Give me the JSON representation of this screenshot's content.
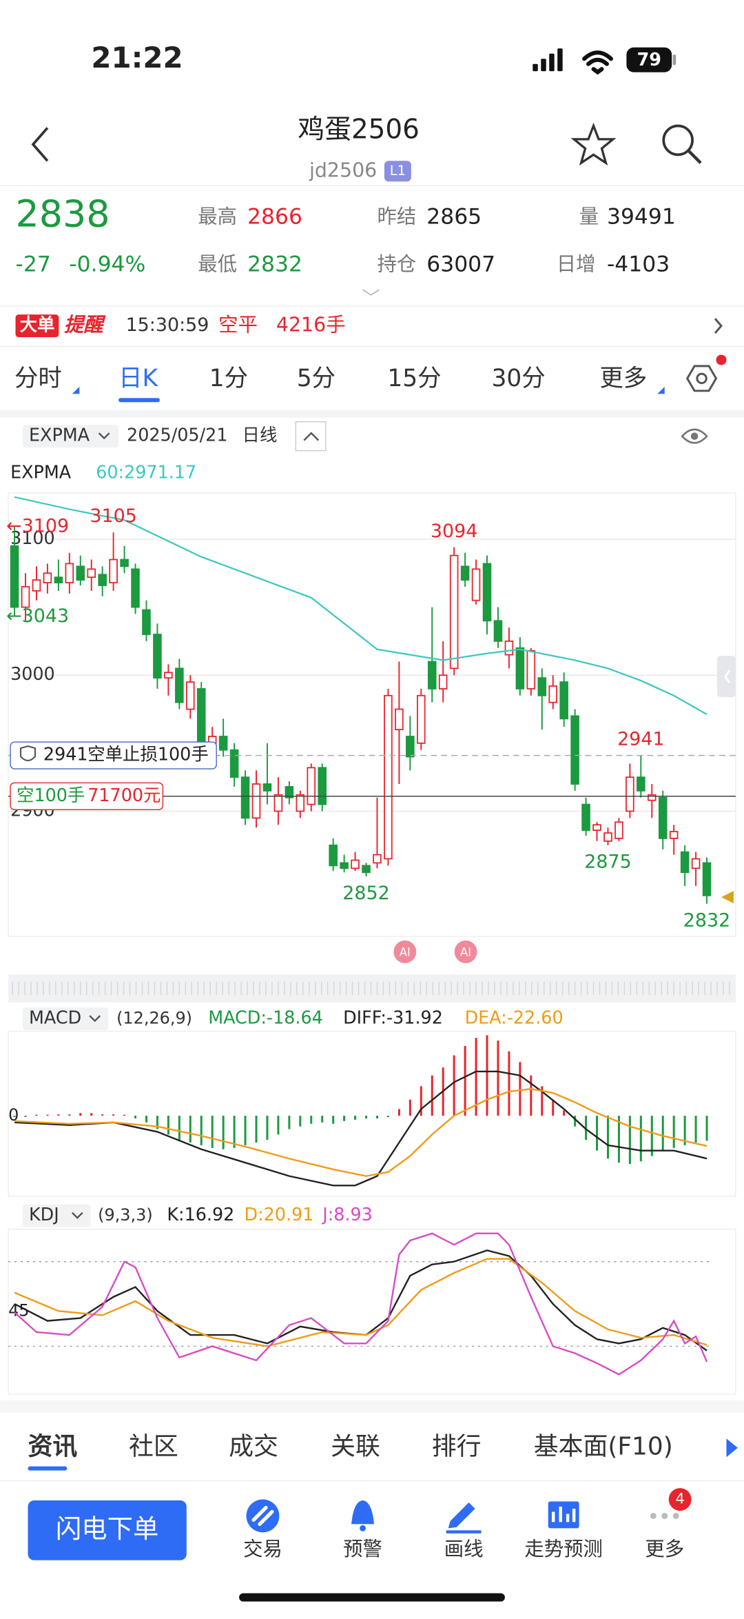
{
  "status_bar": {
    "time": "21:22",
    "battery": "79"
  },
  "header": {
    "title": "鸡蛋2506",
    "code": "jd2506",
    "badge": "L1"
  },
  "quote": {
    "price": "2838",
    "change": "-27",
    "change_pct": "-0.94%",
    "fields": [
      {
        "label": "最高",
        "value": "2866",
        "color": "#e8242d"
      },
      {
        "label": "昨结",
        "value": "2865",
        "color": "#222222"
      },
      {
        "label": "量",
        "value": "39491",
        "color": "#222222"
      },
      {
        "label": "最低",
        "value": "2832",
        "color": "#1b9a3f"
      },
      {
        "label": "持仓",
        "value": "63007",
        "color": "#222222"
      },
      {
        "label": "日增",
        "value": "-4103",
        "color": "#222222"
      }
    ]
  },
  "alert": {
    "tag": "大单",
    "title": "提醒",
    "time": "15:30:59",
    "action": "空平",
    "amount": "4216手"
  },
  "period_tabs": [
    "分时",
    "日K",
    "1分",
    "5分",
    "15分",
    "30分",
    "更多"
  ],
  "toolbar": {
    "indicator": "EXPMA",
    "date": "2025/05/21",
    "period": "日线"
  },
  "kline": {
    "type": "candlestick",
    "name": "EXPMA",
    "readout": "60:2971.17",
    "ylim": [
      2808,
      3134
    ],
    "yticks": [
      3100,
      3000,
      2900
    ],
    "grid": true,
    "up_color": "#e8242d",
    "down_color": "#1b9a3f",
    "candles": [
      [
        3095,
        3109,
        3043,
        3050
      ],
      [
        3050,
        3075,
        3040,
        3065
      ],
      [
        3062,
        3080,
        3055,
        3070
      ],
      [
        3068,
        3082,
        3060,
        3075
      ],
      [
        3072,
        3085,
        3062,
        3068
      ],
      [
        3068,
        3090,
        3060,
        3082
      ],
      [
        3080,
        3088,
        3066,
        3070
      ],
      [
        3072,
        3085,
        3062,
        3078
      ],
      [
        3074,
        3080,
        3058,
        3066
      ],
      [
        3068,
        3105,
        3062,
        3085
      ],
      [
        3085,
        3095,
        3075,
        3080
      ],
      [
        3078,
        3082,
        3045,
        3050
      ],
      [
        3048,
        3055,
        3025,
        3030
      ],
      [
        3030,
        3038,
        2990,
        2998
      ],
      [
        2998,
        3008,
        2985,
        3002
      ],
      [
        3005,
        3012,
        2975,
        2980
      ],
      [
        2975,
        3000,
        2968,
        2995
      ],
      [
        2990,
        2995,
        2945,
        2950
      ],
      [
        2948,
        2962,
        2935,
        2955
      ],
      [
        2955,
        2968,
        2940,
        2945
      ],
      [
        2945,
        2950,
        2918,
        2925
      ],
      [
        2925,
        2930,
        2890,
        2895
      ],
      [
        2895,
        2930,
        2888,
        2920
      ],
      [
        2920,
        2950,
        2905,
        2915
      ],
      [
        2900,
        2925,
        2890,
        2912
      ],
      [
        2918,
        2922,
        2905,
        2910
      ],
      [
        2900,
        2915,
        2895,
        2912
      ],
      [
        2905,
        2935,
        2900,
        2932
      ],
      [
        2932,
        2935,
        2900,
        2905
      ],
      [
        2875,
        2880,
        2856,
        2860
      ],
      [
        2862,
        2868,
        2855,
        2858
      ],
      [
        2858,
        2870,
        2856,
        2864
      ],
      [
        2860,
        2862,
        2852,
        2855
      ],
      [
        2862,
        2910,
        2858,
        2868
      ],
      [
        2865,
        2990,
        2860,
        2985
      ],
      [
        2960,
        3010,
        2920,
        2975
      ],
      [
        2955,
        2970,
        2930,
        2940
      ],
      [
        2950,
        2990,
        2945,
        2985
      ],
      [
        3010,
        3050,
        2980,
        2990
      ],
      [
        2990,
        3025,
        2980,
        3000
      ],
      [
        3005,
        3094,
        3000,
        3088
      ],
      [
        3080,
        3090,
        3065,
        3070
      ],
      [
        3055,
        3085,
        3052,
        3078
      ],
      [
        3082,
        3088,
        3030,
        3040
      ],
      [
        3040,
        3050,
        3020,
        3025
      ],
      [
        3015,
        3035,
        3005,
        3025
      ],
      [
        3020,
        3028,
        2985,
        2990
      ],
      [
        2990,
        3020,
        2985,
        3018
      ],
      [
        2998,
        3005,
        2960,
        2985
      ],
      [
        2980,
        3000,
        2975,
        2992
      ],
      [
        2995,
        3002,
        2962,
        2968
      ],
      [
        2970,
        2975,
        2915,
        2920
      ],
      [
        2905,
        2910,
        2882,
        2886
      ],
      [
        2886,
        2892,
        2878,
        2890
      ],
      [
        2878,
        2888,
        2875,
        2884
      ],
      [
        2880,
        2895,
        2878,
        2892
      ],
      [
        2900,
        2935,
        2895,
        2925
      ],
      [
        2925,
        2941,
        2910,
        2915
      ],
      [
        2908,
        2920,
        2895,
        2912
      ],
      [
        2910,
        2915,
        2872,
        2880
      ],
      [
        2880,
        2890,
        2868,
        2885
      ],
      [
        2870,
        2875,
        2845,
        2855
      ],
      [
        2858,
        2870,
        2845,
        2865
      ],
      [
        2862,
        2866,
        2832,
        2838
      ]
    ],
    "expma": {
      "color": "#3cc8c0",
      "x": [
        0,
        5,
        10,
        17,
        22,
        27,
        30,
        33,
        39,
        43,
        46,
        51,
        54,
        57,
        60,
        63
      ],
      "values": [
        3131,
        3122,
        3114,
        3087,
        3072,
        3057,
        3038,
        3019,
        3011,
        3016,
        3019,
        3011,
        3005,
        2996,
        2985,
        2971.17
      ]
    },
    "edge_labels": [
      {
        "value": 3109,
        "label": "←3109",
        "at": "high"
      },
      {
        "value": 3043,
        "label": "←3043",
        "at": "low"
      }
    ],
    "peak_labels": [
      {
        "value": 3105,
        "at": "high"
      },
      {
        "value": 3094,
        "at": "high"
      },
      {
        "value": 2941,
        "at": "high"
      },
      {
        "value": 2852,
        "at": "low"
      },
      {
        "value": 2875,
        "at": "low"
      },
      {
        "value": 2832,
        "at": "low"
      }
    ],
    "stop_order": {
      "price": 2941,
      "label": "空单止损100手"
    },
    "position": {
      "price": 2911,
      "label": "空100手",
      "amount": "71700元"
    }
  },
  "ai_badges": [
    "AI",
    "AI"
  ],
  "macd": {
    "name": "MACD",
    "params": "(12,26,9)",
    "ylim": [
      -60,
      63
    ],
    "yticks": [
      0
    ],
    "readouts": [
      {
        "text": "MACD:-18.64",
        "color": "#1b9a3f"
      },
      {
        "text": "DIFF:-31.92",
        "color": "#222222"
      },
      {
        "text": "DEA:-22.60",
        "color": "#f29a16"
      }
    ],
    "histogram": [
      -1,
      -1,
      0,
      0,
      1,
      1,
      2,
      2,
      1,
      1,
      0,
      -2,
      -5,
      -10,
      -14,
      -18,
      -20,
      -22,
      -24,
      -25,
      -24,
      -22,
      -20,
      -18,
      -14,
      -10,
      -8,
      -6,
      -5,
      -6,
      -4,
      -3,
      -2,
      -2,
      -1,
      5,
      12,
      22,
      30,
      36,
      45,
      52,
      58,
      60,
      56,
      48,
      40,
      30,
      22,
      12,
      4,
      -8,
      -18,
      -26,
      -32,
      -35,
      -36,
      -34,
      -30,
      -26,
      -24,
      -22,
      -20,
      -18.64
    ],
    "series": [
      {
        "color": "#222222",
        "x": [
          0,
          5,
          9,
          13,
          17,
          21,
          25,
          29,
          31,
          33,
          35,
          37,
          40,
          42,
          44,
          46,
          48,
          50,
          52,
          54,
          57,
          60,
          63
        ],
        "values": [
          -5,
          -7,
          -5,
          -12,
          -25,
          -35,
          -45,
          -52,
          -52,
          -45,
          -20,
          5,
          25,
          33,
          33,
          30,
          18,
          5,
          -10,
          -22,
          -26,
          -26,
          -31.92
        ]
      },
      {
        "color": "#f29a16",
        "x": [
          0,
          5,
          9,
          13,
          17,
          21,
          25,
          29,
          32,
          34,
          36,
          38,
          40,
          43,
          45,
          47,
          49,
          51,
          53,
          56,
          59,
          63
        ],
        "values": [
          -4,
          -6,
          -5,
          -8,
          -15,
          -23,
          -32,
          -40,
          -45,
          -42,
          -30,
          -14,
          0,
          12,
          18,
          20,
          17,
          10,
          2,
          -8,
          -15,
          -22.6
        ]
      }
    ]
  },
  "kdj": {
    "name": "KDJ",
    "params": "(9,3,3)",
    "ylim": [
      -14,
      103
    ],
    "yticks": [
      45
    ],
    "levels": [
      80,
      20
    ],
    "readouts": [
      {
        "text": "K:16.92",
        "color": "#222222"
      },
      {
        "text": "D:20.91",
        "color": "#f29a16"
      },
      {
        "text": "J:8.93",
        "color": "#d84bc6"
      }
    ],
    "series": [
      {
        "color": "#222222",
        "x": [
          0,
          3,
          6,
          9,
          11,
          13,
          16,
          20,
          23,
          26,
          29,
          32,
          34,
          36,
          38,
          40,
          43,
          45,
          47,
          49,
          51,
          53,
          55,
          57,
          59,
          61,
          63
        ],
        "values": [
          50,
          38,
          40,
          55,
          62,
          45,
          28,
          28,
          22,
          34,
          30,
          28,
          40,
          70,
          78,
          80,
          88,
          84,
          70,
          50,
          35,
          25,
          22,
          25,
          33,
          28,
          16.92
        ]
      },
      {
        "color": "#f29a16",
        "x": [
          0,
          4,
          8,
          11,
          14,
          18,
          23,
          28,
          32,
          34,
          37,
          40,
          43,
          45,
          48,
          51,
          54,
          57,
          60,
          63
        ],
        "values": [
          58,
          45,
          42,
          52,
          38,
          26,
          20,
          30,
          28,
          35,
          60,
          72,
          82,
          82,
          65,
          45,
          32,
          26,
          28,
          20.91
        ]
      },
      {
        "color": "#d84bc6",
        "x": [
          0,
          2,
          5,
          8,
          10,
          11,
          13,
          15,
          18,
          22,
          25,
          27,
          30,
          32,
          34,
          35,
          36,
          38,
          40,
          42,
          44,
          45,
          47,
          49,
          51,
          53,
          55,
          57,
          59,
          60,
          61,
          62,
          63
        ],
        "values": [
          44,
          30,
          28,
          48,
          80,
          76,
          40,
          12,
          20,
          10,
          35,
          40,
          22,
          22,
          38,
          85,
          95,
          100,
          92,
          100,
          100,
          92,
          55,
          20,
          15,
          8,
          0,
          10,
          25,
          38,
          22,
          27,
          8.93
        ]
      }
    ]
  },
  "bottom_tabs": [
    "资讯",
    "社区",
    "成交",
    "关联",
    "排行",
    "基本面(F10)"
  ],
  "nav": {
    "primary": "闪电下单",
    "items": [
      "交易",
      "预警",
      "画线",
      "走势预测",
      "更多"
    ],
    "badge": "4"
  }
}
